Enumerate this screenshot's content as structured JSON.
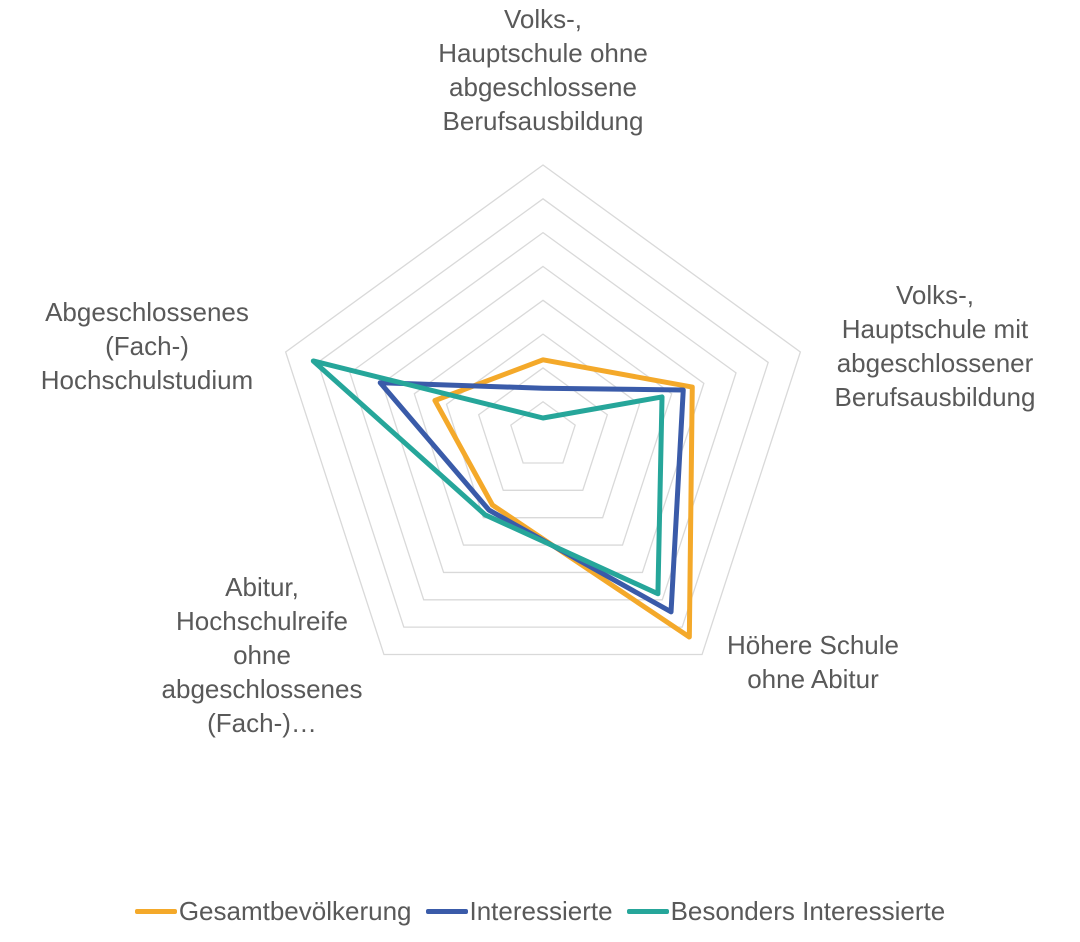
{
  "chart_data": {
    "type": "radar",
    "categories": [
      [
        "Volks-,",
        "Hauptschule ohne",
        "abgeschlossene",
        "Berufsausbildung"
      ],
      [
        "Volks-,",
        "Hauptschule mit",
        "abgeschlossener",
        "Berufsausbildung"
      ],
      [
        "Höhere Schule",
        "ohne Abitur"
      ],
      [
        "Abitur,",
        "Hochschulreife",
        "ohne",
        "abgeschlossenes",
        "(Fach-)…"
      ],
      [
        "Abgeschlossenes",
        "(Fach-)",
        "Hochschulstudium"
      ]
    ],
    "series": [
      {
        "name": "Gesamtbevölkerung",
        "color": "#F4A92A",
        "values": [
          11.2,
          23.2,
          36.8,
          12.7,
          16.8
        ]
      },
      {
        "name": "Interessierte",
        "color": "#3A5BA9",
        "values": [
          7.0,
          21.8,
          32.2,
          13.6,
          25.3
        ]
      },
      {
        "name": "Besonders Interessierte",
        "color": "#26A69A",
        "values": [
          2.6,
          18.5,
          28.9,
          14.5,
          35.7
        ]
      }
    ],
    "ylim": [
      0,
      40
    ],
    "yticks": [
      5,
      10,
      15,
      20,
      25,
      30,
      35,
      40
    ],
    "grid": true,
    "legend": "bottom"
  }
}
